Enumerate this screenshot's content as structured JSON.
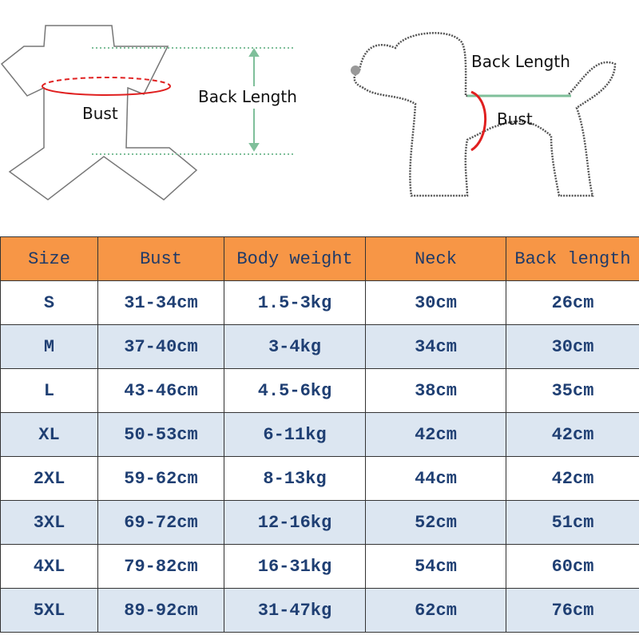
{
  "illustration": {
    "garment_bust_label": "Bust",
    "garment_back_length_label": "Back Length",
    "dog_back_length_label": "Back Length",
    "dog_bust_label": "Bust"
  },
  "colors": {
    "header_bg": "#f79646",
    "alt_row_bg": "#dce6f1",
    "text": "#1f3f73",
    "bust_line": "#e02020",
    "back_length_line": "#7fbf9a"
  },
  "table": {
    "headers": [
      "Size",
      "Bust",
      "Body weight",
      "Neck",
      "Back length"
    ],
    "rows": [
      [
        "S",
        "31-34cm",
        "1.5-3kg",
        "30cm",
        "26cm"
      ],
      [
        "M",
        "37-40cm",
        "3-4kg",
        "34cm",
        "30cm"
      ],
      [
        "L",
        "43-46cm",
        "4.5-6kg",
        "38cm",
        "35cm"
      ],
      [
        "XL",
        "50-53cm",
        "6-11kg",
        "42cm",
        "42cm"
      ],
      [
        "2XL",
        "59-62cm",
        "8-13kg",
        "44cm",
        "42cm"
      ],
      [
        "3XL",
        "69-72cm",
        "12-16kg",
        "52cm",
        "51cm"
      ],
      [
        "4XL",
        "79-82cm",
        "16-31kg",
        "54cm",
        "60cm"
      ],
      [
        "5XL",
        "89-92cm",
        "31-47kg",
        "62cm",
        "76cm"
      ]
    ]
  }
}
